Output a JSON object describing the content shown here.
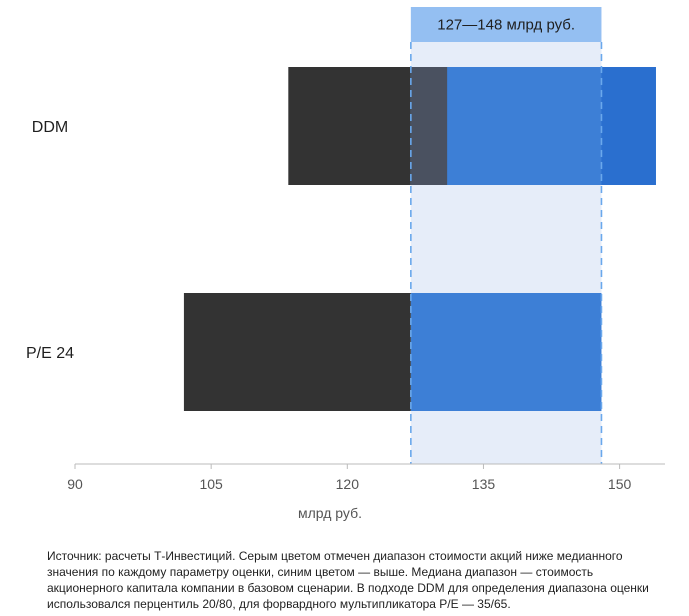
{
  "chart_data": {
    "type": "bar",
    "orientation": "horizontal",
    "categories": [
      "DDM",
      "P/E 24"
    ],
    "series": [
      {
        "role": "below-median",
        "color": "#333333",
        "ranges": [
          [
            113.5,
            127
          ],
          [
            102,
            127
          ]
        ]
      },
      {
        "role": "above-median",
        "color": "#3d7fd6",
        "ranges": [
          [
            127,
            154
          ],
          [
            127,
            148
          ]
        ]
      }
    ],
    "ddm_darker_segment": {
      "range": [
        148,
        154
      ],
      "color": "#2a6fcf"
    },
    "ddm_overlap_segment": {
      "range": [
        127,
        131
      ],
      "color": "#4a5160"
    },
    "median_range": {
      "from": 127,
      "to": 148,
      "label": "127—148 млрд руб."
    },
    "xlim": [
      90,
      155
    ],
    "xticks": [
      90,
      105,
      120,
      135,
      150
    ],
    "xlabel": "млрд руб.",
    "grid": false
  },
  "footnote": "Источник: расчеты Т-Инвестиций. Серым цветом отмечен диапазон стоимости акций ниже медианного значения по каждому параметру оценки, синим цветом — выше. Медиана диапазон — стоимость акционерного капитала компании в базовом сценарии. В подходе DDM для определения диапазона оценки использовался перцентиль 20/80, для форвардного мультипликатора P/E — 35/65.",
  "colors": {
    "band_fill": "#e6edf9",
    "band_label_fill": "#94bff2",
    "median_line": "#6aa8ec",
    "axis": "#bbbbbb"
  }
}
